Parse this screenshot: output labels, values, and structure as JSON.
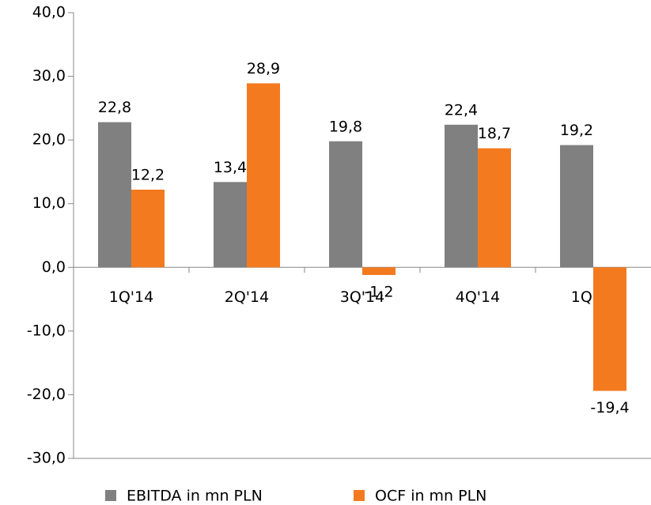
{
  "chart_data": {
    "type": "bar",
    "categories": [
      "1Q'14",
      "2Q'14",
      "3Q'14",
      "4Q'14",
      "1Q'15"
    ],
    "series": [
      {
        "name": "EBITDA in mn PLN",
        "color": "#808080",
        "values": [
          22.8,
          13.4,
          19.8,
          22.4,
          19.2
        ],
        "value_labels": [
          "22,8",
          "13,4",
          "19,8",
          "22,4",
          "19,2"
        ]
      },
      {
        "name": "OCF in mn PLN",
        "color": "#f47a1f",
        "values": [
          12.2,
          28.9,
          -1.2,
          18.7,
          -19.4
        ],
        "value_labels": [
          "12,2",
          "28,9",
          "-1,2",
          "18,7",
          "-19,4"
        ]
      }
    ],
    "ylim": [
      -30,
      40
    ],
    "yticks": [
      {
        "value": -30,
        "label": "-30,0"
      },
      {
        "value": -20,
        "label": "-20,0"
      },
      {
        "value": -10,
        "label": "-10,0"
      },
      {
        "value": 0,
        "label": "0,0"
      },
      {
        "value": 10,
        "label": "10,0"
      },
      {
        "value": 20,
        "label": "20,0"
      },
      {
        "value": 30,
        "label": "30,0"
      },
      {
        "value": 40,
        "label": "40,0"
      }
    ],
    "grid": false,
    "legend": "bottom"
  }
}
